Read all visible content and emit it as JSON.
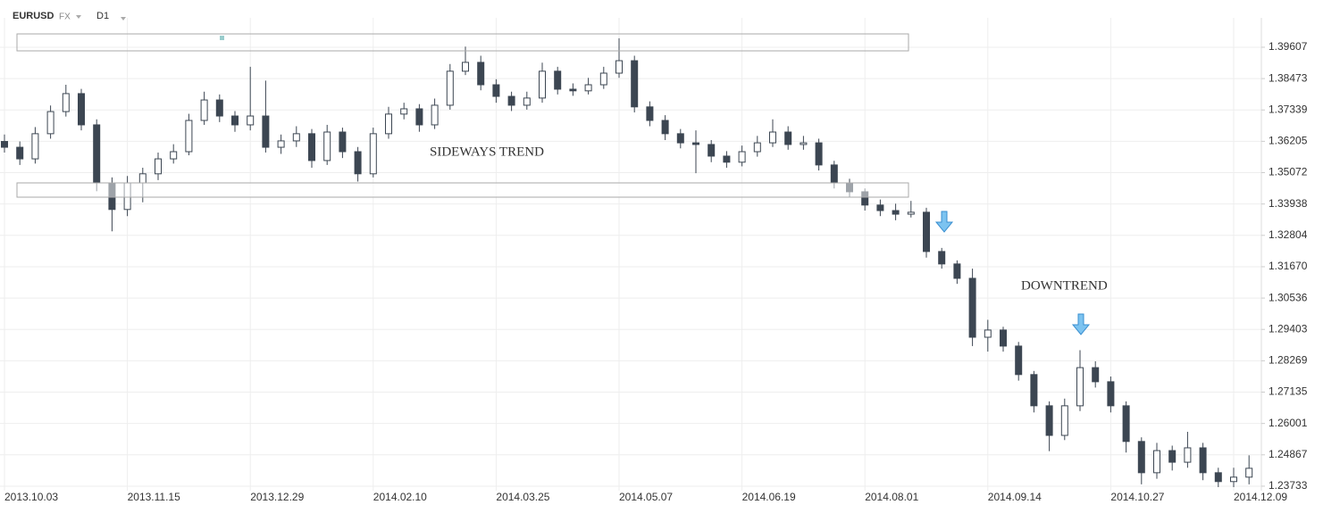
{
  "header": {
    "symbol": "EURUSD",
    "market": "FX",
    "timeframe": "D1"
  },
  "chart_data": {
    "type": "candlestick",
    "annotations": [
      "SIDEWAYS TREND",
      "DOWNTREND"
    ],
    "categories": [
      "2013.10.03",
      null,
      null,
      null,
      null,
      null,
      null,
      null,
      "2013.11.15",
      null,
      null,
      null,
      null,
      null,
      null,
      null,
      "2013.12.29",
      null,
      null,
      null,
      null,
      null,
      null,
      null,
      "2014.02.10",
      null,
      null,
      null,
      null,
      null,
      null,
      null,
      "2014.03.25",
      null,
      null,
      null,
      null,
      null,
      null,
      null,
      "2014.05.07",
      null,
      null,
      null,
      null,
      null,
      null,
      null,
      "2014.06.19",
      null,
      null,
      null,
      null,
      null,
      null,
      null,
      "2014.08.01",
      null,
      null,
      null,
      null,
      null,
      null,
      null,
      "2014.09.14",
      null,
      null,
      null,
      null,
      null,
      null,
      null,
      "2014.10.27",
      null,
      null,
      null,
      null,
      null,
      null,
      null,
      "2014.12.09",
      null
    ],
    "open": [
      1.362,
      1.3599,
      1.3557,
      1.3648,
      1.3728,
      1.3793,
      1.368,
      1.347,
      1.3374,
      1.347,
      1.3503,
      1.3557,
      1.3583,
      1.3696,
      1.377,
      1.3712,
      1.368,
      1.3712,
      1.3599,
      1.3622,
      1.3648,
      1.3551,
      1.3654,
      1.3583,
      1.3503,
      1.3648,
      1.3719,
      1.3738,
      1.368,
      1.3751,
      1.3874,
      1.3906,
      1.3825,
      1.3783,
      1.3751,
      1.3777,
      1.3874,
      1.3809,
      1.3803,
      1.3825,
      1.3867,
      1.3912,
      1.3745,
      1.3696,
      1.3648,
      1.3615,
      1.3609,
      1.3567,
      1.3545,
      1.3583,
      1.3615,
      1.3654,
      1.3609,
      1.3615,
      1.3535,
      1.347,
      1.3438,
      1.339,
      1.337,
      1.3357,
      1.3364,
      1.3222,
      1.3177,
      1.3125,
      1.2912,
      1.2938,
      1.288,
      1.2777,
      1.2664,
      1.2557,
      1.2664,
      1.2802,
      1.2751,
      1.2664,
      1.2535,
      1.2422,
      1.2502,
      1.246,
      1.2512,
      1.2422,
      1.239,
      1.2406
    ],
    "high": [
      1.3645,
      1.362,
      1.3672,
      1.375,
      1.3825,
      1.381,
      1.37,
      1.349,
      1.3495,
      1.3525,
      1.358,
      1.361,
      1.372,
      1.38,
      1.379,
      1.373,
      1.389,
      1.384,
      1.3645,
      1.3675,
      1.3665,
      1.368,
      1.367,
      1.36,
      1.367,
      1.3745,
      1.376,
      1.3755,
      1.3775,
      1.39,
      1.3963,
      1.393,
      1.3845,
      1.38,
      1.38,
      1.3905,
      1.389,
      1.383,
      1.385,
      1.389,
      1.3993,
      1.393,
      1.3765,
      1.3715,
      1.3665,
      1.366,
      1.3625,
      1.3585,
      1.3605,
      1.364,
      1.37,
      1.3675,
      1.364,
      1.363,
      1.355,
      1.3485,
      1.345,
      1.341,
      1.3395,
      1.3405,
      1.338,
      1.3235,
      1.319,
      1.316,
      1.2975,
      1.295,
      1.2895,
      1.279,
      1.268,
      1.269,
      1.2865,
      1.2825,
      1.277,
      1.268,
      1.255,
      1.253,
      1.252,
      1.257,
      1.253,
      1.244,
      1.244,
      1.2485
    ],
    "low": [
      1.358,
      1.3535,
      1.354,
      1.363,
      1.371,
      1.366,
      1.344,
      1.3295,
      1.335,
      1.34,
      1.348,
      1.354,
      1.357,
      1.368,
      1.369,
      1.3655,
      1.366,
      1.358,
      1.3575,
      1.36,
      1.3525,
      1.3535,
      1.356,
      1.3475,
      1.349,
      1.363,
      1.37,
      1.3655,
      1.3665,
      1.3735,
      1.386,
      1.3805,
      1.376,
      1.373,
      1.3735,
      1.376,
      1.379,
      1.3785,
      1.379,
      1.381,
      1.385,
      1.3725,
      1.3675,
      1.3625,
      1.3595,
      1.3505,
      1.3545,
      1.3525,
      1.353,
      1.3565,
      1.36,
      1.359,
      1.359,
      1.3515,
      1.345,
      1.342,
      1.337,
      1.335,
      1.3335,
      1.3345,
      1.32,
      1.316,
      1.3105,
      1.288,
      1.286,
      1.286,
      1.2755,
      1.264,
      1.25,
      1.254,
      1.2645,
      1.273,
      1.264,
      1.2495,
      1.238,
      1.24,
      1.243,
      1.244,
      1.2395,
      1.237,
      1.237,
      1.238
    ],
    "close": [
      1.3599,
      1.3557,
      1.3648,
      1.3728,
      1.3793,
      1.368,
      1.347,
      1.3374,
      1.347,
      1.3503,
      1.3557,
      1.3583,
      1.3696,
      1.377,
      1.3712,
      1.368,
      1.3712,
      1.3599,
      1.3622,
      1.3648,
      1.3551,
      1.3654,
      1.3583,
      1.3503,
      1.3648,
      1.3719,
      1.3738,
      1.368,
      1.3751,
      1.3874,
      1.3906,
      1.3825,
      1.3783,
      1.3751,
      1.3777,
      1.3874,
      1.3809,
      1.3803,
      1.3825,
      1.3867,
      1.3912,
      1.3745,
      1.3696,
      1.3648,
      1.3615,
      1.3609,
      1.3567,
      1.3545,
      1.3583,
      1.3615,
      1.3654,
      1.3609,
      1.3615,
      1.3535,
      1.347,
      1.3438,
      1.339,
      1.337,
      1.3357,
      1.3364,
      1.3222,
      1.3177,
      1.3125,
      1.2912,
      1.2938,
      1.288,
      1.2777,
      1.2664,
      1.2557,
      1.2664,
      1.2802,
      1.2751,
      1.2664,
      1.2535,
      1.2422,
      1.2502,
      1.246,
      1.2512,
      1.2422,
      1.239,
      1.2406,
      1.2438
    ],
    "up_color": "#ffffff",
    "down_color": "#3c4652",
    "wick_color": "#3c4652",
    "ylim": [
      1.2357,
      1.4067
    ],
    "yticks": [
      1.23733,
      1.24867,
      1.26001,
      1.27135,
      1.28269,
      1.29403,
      1.30536,
      {
        "value": 1.3167,
        "label": "1.31670"
      },
      1.32804,
      1.33938,
      1.35072,
      1.36205,
      1.37339,
      1.38473,
      1.39607
    ],
    "grid": true
  }
}
